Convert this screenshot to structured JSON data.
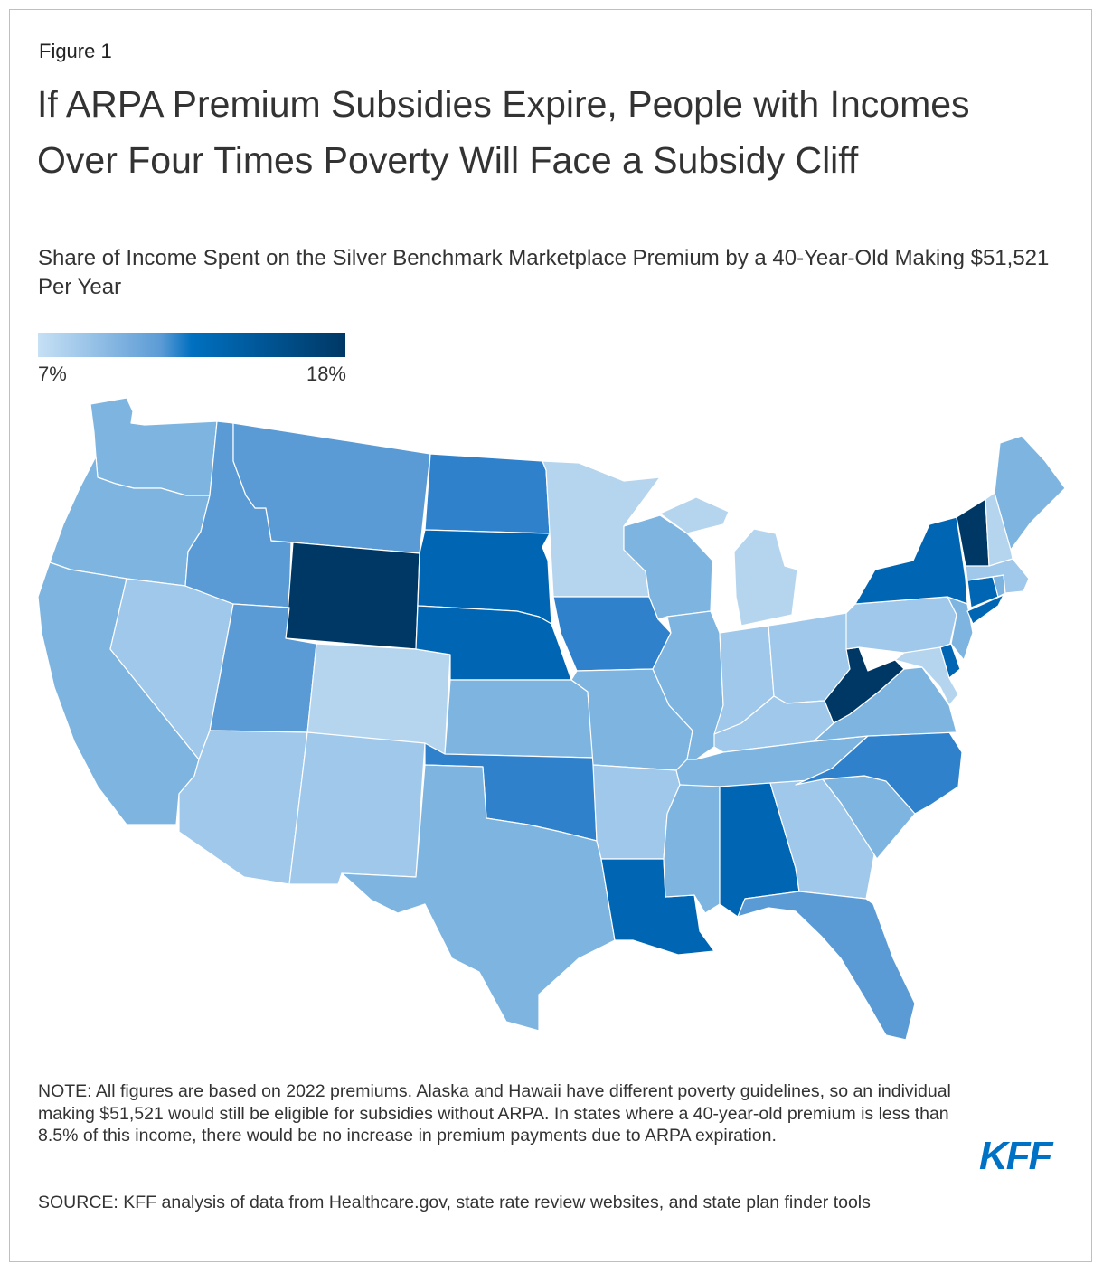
{
  "figure_label": "Figure 1",
  "title": "If ARPA Premium Subsidies Expire, People with Incomes Over Four Times Poverty Will Face a Subsidy Cliff",
  "subtitle": "Share of Income Spent on the Silver Benchmark Marketplace Premium by a 40-Year-Old Making $51,521 Per Year",
  "legend": {
    "min_label": "7%",
    "max_label": "18%",
    "min_value": 7,
    "max_value": 18,
    "gradient_colors": [
      "#c6e0f5",
      "#5b9bd5",
      "#0070c0",
      "#003865"
    ]
  },
  "map_data": {
    "type": "choropleth",
    "region": "contiguous United States",
    "shade_levels": {
      "lightest": "#b5d5ef",
      "light": "#9fc8ea",
      "medium_light": "#7db4e0",
      "medium": "#5b9bd5",
      "medium_dark": "#2f81cb",
      "dark": "#0066b3",
      "darkest": "#003865"
    },
    "states": {
      "WA": "medium_light",
      "OR": "medium_light",
      "CA": "medium_light",
      "NV": "light",
      "ID": "medium",
      "MT": "medium",
      "WY": "darkest",
      "UT": "medium",
      "AZ": "light",
      "CO": "lightest",
      "NM": "light",
      "ND": "medium_dark",
      "SD": "dark",
      "NE": "dark",
      "KS": "medium_light",
      "OK": "medium_dark",
      "TX": "medium_light",
      "MN": "lightest",
      "IA": "medium_dark",
      "MO": "medium_light",
      "AR": "light",
      "LA": "dark",
      "WI": "medium_light",
      "IL": "medium_light",
      "MI": "lightest",
      "IN": "light",
      "OH": "light",
      "KY": "light",
      "TN": "medium_light",
      "MS": "medium_light",
      "AL": "dark",
      "GA": "light",
      "FL": "medium",
      "SC": "medium_light",
      "NC": "medium_dark",
      "VA": "medium_light",
      "WV": "darkest",
      "MD": "lightest",
      "DE": "dark",
      "PA": "light",
      "NJ": "medium_light",
      "NY": "dark",
      "CT": "dark",
      "RI": "medium_light",
      "MA": "light",
      "VT": "darkest",
      "NH": "lightest",
      "ME": "medium_light"
    }
  },
  "note": "NOTE: All figures are based on 2022 premiums. Alaska and Hawaii have different poverty guidelines, so an individual making $51,521 would still be eligible for subsidies without ARPA. In states where a 40-year-old premium is less than 8.5% of this income, there would be no increase in premium payments due to ARPA expiration.",
  "source": "SOURCE: KFF analysis of data from Healthcare.gov, state rate review websites, and state plan finder tools",
  "logo_text": "KFF"
}
